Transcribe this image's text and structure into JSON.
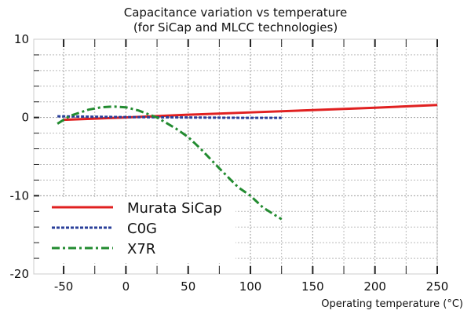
{
  "chart_data": {
    "type": "line",
    "title": "Capacitance variation vs temperature",
    "subtitle": "(for SiCap and MLCC technologies)",
    "xlabel": "Operating temperature (°C)",
    "ylabel": "",
    "xlim": [
      -74,
      250
    ],
    "ylim": [
      -20,
      10
    ],
    "xticks": [
      -50,
      0,
      50,
      100,
      150,
      200,
      250
    ],
    "yticks": [
      10,
      0,
      -10,
      -20
    ],
    "grid": true,
    "legend_position": "bottom-left",
    "series": [
      {
        "name": "Murata SiCap",
        "color": "#e02020",
        "style": "solid",
        "x": [
          -50,
          0,
          50,
          100,
          150,
          200,
          250
        ],
        "y": [
          -0.3,
          0.0,
          0.35,
          0.65,
          0.95,
          1.25,
          1.6
        ]
      },
      {
        "name": "C0G",
        "color": "#2a3f9a",
        "style": "dotted",
        "x": [
          -55,
          0,
          50,
          100,
          125
        ],
        "y": [
          0.15,
          0.05,
          0.0,
          -0.05,
          -0.05
        ]
      },
      {
        "name": "X7R",
        "color": "#228b30",
        "style": "dashdot",
        "x": [
          -55,
          -45,
          -30,
          -20,
          -10,
          0,
          10,
          25,
          40,
          50,
          60,
          75,
          90,
          100,
          110,
          125
        ],
        "y": [
          -0.8,
          0.2,
          1.0,
          1.3,
          1.4,
          1.3,
          0.9,
          0.0,
          -1.4,
          -2.5,
          -4.0,
          -6.5,
          -8.9,
          -10.0,
          -11.5,
          -13.0
        ]
      }
    ]
  }
}
